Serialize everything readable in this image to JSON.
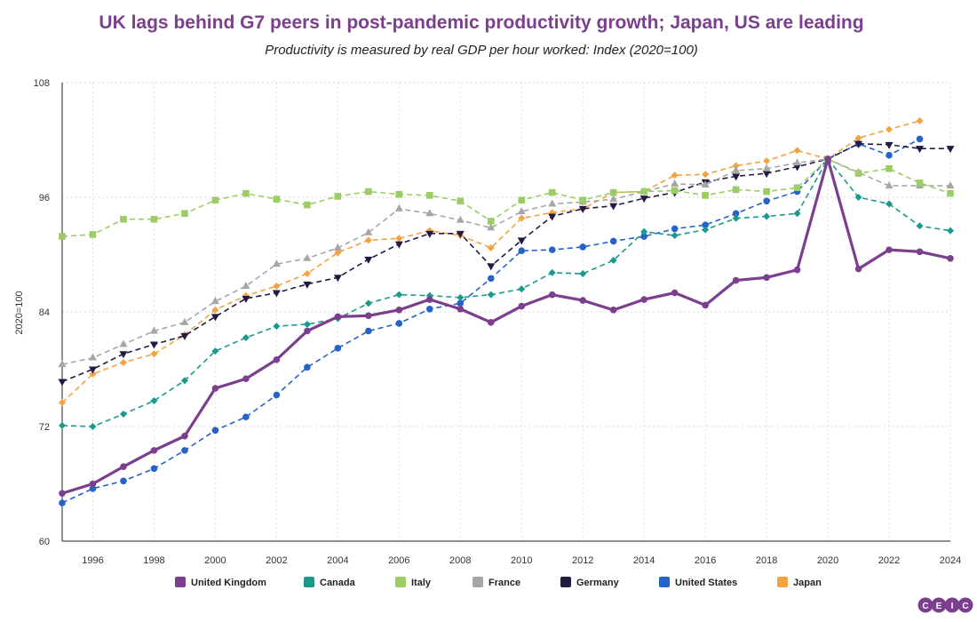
{
  "chart_data": {
    "type": "line",
    "title": "UK lags behind G7 peers in post-pandemic productivity growth; Japan, US are leading",
    "subtitle": "Productivity is measured by real GDP per hour worked: Index (2020=100)",
    "ylabel": "2020=100",
    "xlabel": "",
    "xlim": [
      1995,
      2024
    ],
    "ylim": [
      60,
      108
    ],
    "y_ticks": [
      60,
      72,
      84,
      96,
      108
    ],
    "x_ticks": [
      1996,
      1998,
      2000,
      2002,
      2004,
      2006,
      2008,
      2010,
      2012,
      2014,
      2016,
      2018,
      2020,
      2022,
      2024
    ],
    "grid": true,
    "legend_position": "bottom",
    "x": [
      1995,
      1996,
      1997,
      1998,
      1999,
      2000,
      2001,
      2002,
      2003,
      2004,
      2005,
      2006,
      2007,
      2008,
      2009,
      2010,
      2011,
      2012,
      2013,
      2014,
      2015,
      2016,
      2017,
      2018,
      2019,
      2020,
      2021,
      2022,
      2023,
      2024
    ],
    "series": [
      {
        "name": "United Kingdom",
        "color": "#7b3f8e",
        "marker": "circle",
        "style": "solid",
        "values": [
          65.0,
          66.0,
          67.8,
          69.5,
          71.0,
          76.0,
          77.0,
          79.0,
          82.0,
          83.5,
          83.6,
          84.2,
          85.3,
          84.3,
          82.9,
          84.6,
          85.8,
          85.2,
          84.2,
          85.3,
          86.0,
          84.7,
          87.3,
          87.6,
          88.4,
          100.0,
          88.5,
          90.5,
          90.3,
          89.6
        ]
      },
      {
        "name": "Canada",
        "color": "#1a9a8c",
        "marker": "diamond",
        "style": "dashed",
        "values": [
          72.1,
          72.0,
          73.3,
          74.7,
          76.8,
          79.9,
          81.3,
          82.5,
          82.7,
          83.3,
          84.9,
          85.8,
          85.7,
          85.5,
          85.8,
          86.4,
          88.1,
          88.0,
          89.4,
          92.4,
          92.0,
          92.6,
          93.8,
          94.0,
          94.3,
          100.0,
          96.0,
          95.3,
          93.0,
          92.5
        ]
      },
      {
        "name": "Italy",
        "color": "#9ccc65",
        "marker": "square",
        "style": "dashed",
        "values": [
          91.9,
          92.1,
          93.7,
          93.7,
          94.3,
          95.7,
          96.4,
          95.8,
          95.2,
          96.1,
          96.6,
          96.3,
          96.2,
          95.6,
          93.5,
          95.7,
          96.5,
          95.7,
          96.5,
          96.6,
          96.7,
          96.2,
          96.8,
          96.6,
          97.0,
          100.0,
          98.5,
          99.0,
          97.5,
          96.4
        ]
      },
      {
        "name": "France",
        "color": "#a6a6a6",
        "marker": "triangle-up",
        "style": "dashed",
        "values": [
          78.5,
          79.2,
          80.6,
          82.0,
          82.9,
          85.1,
          86.7,
          89.0,
          89.6,
          90.7,
          92.3,
          94.8,
          94.3,
          93.6,
          92.8,
          94.5,
          95.3,
          95.5,
          95.8,
          96.6,
          97.4,
          97.3,
          98.8,
          99.0,
          99.6,
          100.0,
          98.6,
          97.2,
          97.2,
          97.2
        ]
      },
      {
        "name": "Germany",
        "color": "#231942",
        "marker": "triangle-down",
        "style": "dashed",
        "values": [
          76.7,
          78.0,
          79.6,
          80.6,
          81.5,
          83.5,
          85.4,
          86.0,
          86.9,
          87.6,
          89.5,
          91.1,
          92.2,
          92.2,
          88.8,
          91.5,
          94.0,
          94.8,
          95.1,
          95.9,
          96.5,
          97.6,
          98.2,
          98.5,
          99.2,
          100.0,
          101.6,
          101.5,
          101.1,
          101.1
        ]
      },
      {
        "name": "United States",
        "color": "#2563c9",
        "marker": "circle",
        "style": "dashed",
        "values": [
          64.0,
          65.5,
          66.3,
          67.6,
          69.5,
          71.6,
          73.0,
          75.3,
          78.2,
          80.2,
          82.0,
          82.8,
          84.3,
          84.9,
          87.5,
          90.4,
          90.5,
          90.8,
          91.4,
          91.9,
          92.7,
          93.1,
          94.3,
          95.6,
          96.6,
          100.0,
          101.6,
          100.4,
          102.1,
          null
        ]
      },
      {
        "name": "Japan",
        "color": "#f4a340",
        "marker": "diamond",
        "style": "dashed",
        "values": [
          74.5,
          77.5,
          78.7,
          79.6,
          81.6,
          84.2,
          85.7,
          86.7,
          88.0,
          90.2,
          91.5,
          91.7,
          92.5,
          92.0,
          90.7,
          93.8,
          94.4,
          94.8,
          96.5,
          96.6,
          98.3,
          98.4,
          99.3,
          99.8,
          100.9,
          100.0,
          102.2,
          103.1,
          104.0,
          null
        ]
      }
    ]
  },
  "branding": {
    "logo_text": "CEIC",
    "logo_color": "#7b3f8e"
  }
}
